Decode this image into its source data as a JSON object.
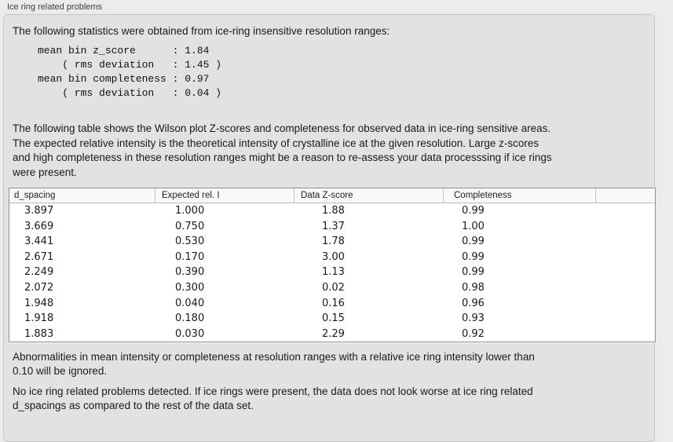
{
  "panel": {
    "title": "Ice ring related problems"
  },
  "intro": {
    "text": "The following statistics were obtained from ice-ring insensitive resolution ranges:"
  },
  "stats_block": {
    "text": "mean bin z_score      : 1.84\n    ( rms deviation   : 1.45 )\nmean bin completeness : 0.97\n    ( rms deviation   : 0.04 )"
  },
  "description": {
    "text": "The following table shows the Wilson plot Z-scores and completeness for observed data in ice-ring sensitive areas.\nThe expected relative intensity is the theoretical intensity of crystalline ice at the given resolution. Large z-scores\nand high completeness in these resolution ranges might be a reason to re-assess your data processsing if ice rings\nwere present."
  },
  "table": {
    "columns": [
      "d_spacing",
      "Expected rel. I",
      "Data Z-score",
      "Completeness"
    ],
    "rows": [
      [
        "3.897",
        "1.000",
        "1.88",
        "0.99"
      ],
      [
        "3.669",
        "0.750",
        "1.37",
        "1.00"
      ],
      [
        "3.441",
        "0.530",
        "1.78",
        "0.99"
      ],
      [
        "2.671",
        "0.170",
        "3.00",
        "0.99"
      ],
      [
        "2.249",
        "0.390",
        "1.13",
        "0.99"
      ],
      [
        "2.072",
        "0.300",
        "0.02",
        "0.98"
      ],
      [
        "1.948",
        "0.040",
        "0.16",
        "0.96"
      ],
      [
        "1.918",
        "0.180",
        "0.15",
        "0.93"
      ],
      [
        "1.883",
        "0.030",
        "2.29",
        "0.92"
      ]
    ]
  },
  "notes": {
    "ignore_note": "Abnormalities in mean intensity or completeness at resolution ranges with a relative ice ring intensity lower than\n0.10 will be ignored.",
    "conclusion": "No ice ring related problems detected. If ice rings were present, the data does not look worse at ice ring related\nd_spacings as compared to the rest of the data set."
  },
  "colors": {
    "page_background": "#ebebeb",
    "groupbox_background": "#e2e2e2",
    "table_background": "#ffffff",
    "table_border": "#919191",
    "text": "#1a1a1a"
  }
}
